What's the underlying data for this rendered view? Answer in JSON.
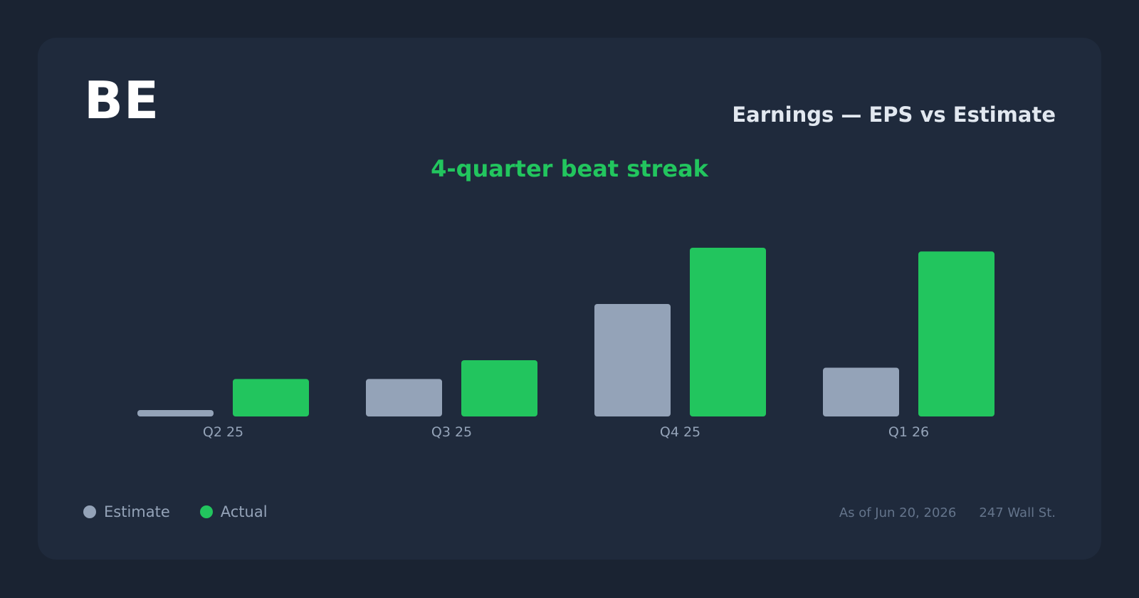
{
  "ticker": "BE",
  "header": {
    "title": "Earnings — EPS vs Estimate",
    "subtitle": "4-quarter beat streak"
  },
  "footer": {
    "as_of": "As of Jun 20, 2026",
    "source": "247 Wall St."
  },
  "colors": {
    "background": "#1a2332",
    "card": "#1f2a3c",
    "estimate": "#94a3b8",
    "actual": "#22c55e",
    "subtitle": "#22c55e"
  },
  "chart_data": {
    "type": "bar",
    "title": "Earnings — EPS vs Estimate",
    "subtitle": "4-quarter beat streak",
    "categories": [
      "Q2 25",
      "Q3 25",
      "Q4 25",
      "Q1 26"
    ],
    "series": [
      {
        "name": "Estimate",
        "values": [
          0.01,
          0.1,
          0.3,
          0.13
        ]
      },
      {
        "name": "Actual",
        "values": [
          0.1,
          0.15,
          0.45,
          0.44
        ]
      }
    ],
    "ylim": [
      0,
      0.45
    ],
    "grid": false,
    "legend": "bottom-left"
  }
}
